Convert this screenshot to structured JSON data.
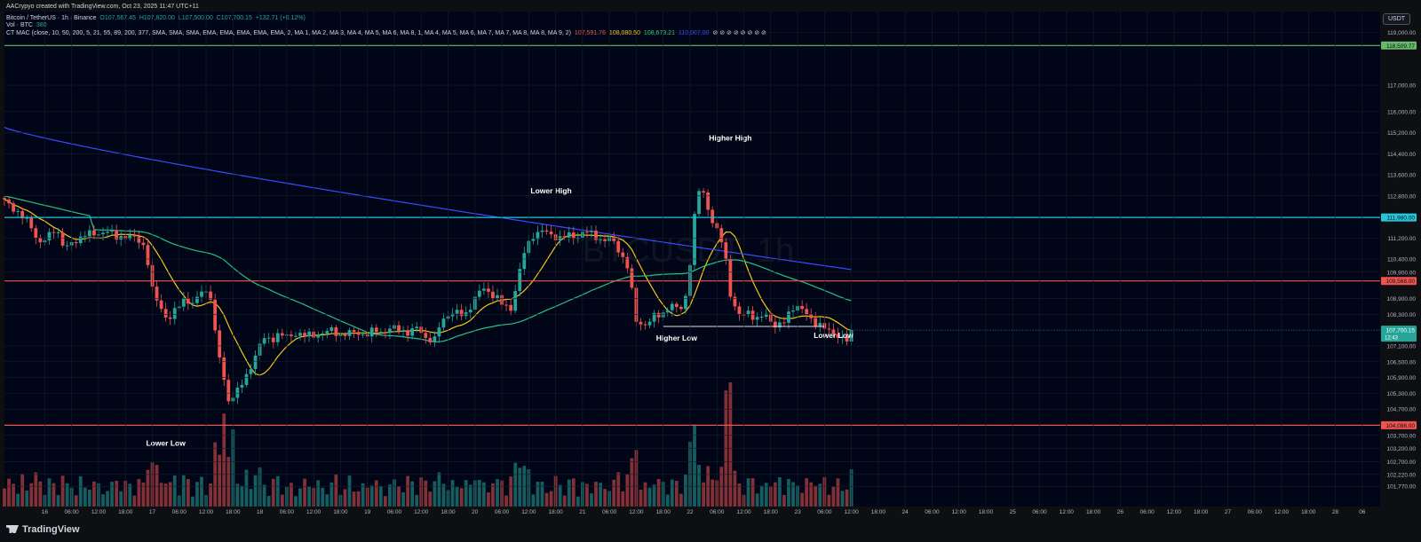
{
  "credit": "AACrypyo created with TradingView.com, Oct 23, 2025 11:47 UTC+11",
  "symbol_line": {
    "name": "Bitcoin / TetherUS · 1h · Binance",
    "o": "O107,567.45",
    "h": "H107,820.00",
    "l": "L107,500.00",
    "c": "C107,700.15",
    "chg": "+132.71 (+0.12%)"
  },
  "vol_line": {
    "label": "Vol · BTC",
    "value": "380"
  },
  "ma_line": {
    "label": "CT MAC (close, 10, 50, 200, 5, 21, 55, 89, 200, 377, SMA, SMA, SMA, EMA, EMA, EMA, EMA, EMA, 2, MA 1, MA 2, MA 3, MA 4, MA 5, MA 6, MA 8, 1, MA 4, MA 5, MA 6, MA 7, MA 7, MA 8, MA 8, MA 9, 2)",
    "v1": "107,591.76",
    "v2": "108,080.50",
    "v3": "108,673.21",
    "v4": "110,007.00"
  },
  "currency": "USDT",
  "watermark": {
    "symbol": "BTCUSDT, 1h",
    "sub": "Bitcoin / TetherUS"
  },
  "brand": "TradingView",
  "chart_data": {
    "type": "candlestick",
    "timeframe": "1h",
    "y_axis": {
      "min": 101000,
      "max": 119800,
      "ticks": [
        "119,000.00",
        "117,000.00",
        "116,000.00",
        "115,200.00",
        "114,400.00",
        "113,600.00",
        "112,800.00",
        "111,200.00",
        "110,400.00",
        "109,900.00",
        "108,900.00",
        "108,300.00",
        "107,100.00",
        "106,500.00",
        "105,900.00",
        "105,300.00",
        "104,700.00",
        "103,700.00",
        "103,200.00",
        "102,700.00",
        "102,220.00",
        "101,770.00"
      ]
    },
    "x_axis": {
      "ticks": [
        {
          "label": "16",
          "hour": 9
        },
        {
          "label": "06:00",
          "hour": 15
        },
        {
          "label": "12:00",
          "hour": 21
        },
        {
          "label": "18:00",
          "hour": 27
        },
        {
          "label": "17",
          "hour": 33
        },
        {
          "label": "06:00",
          "hour": 39
        },
        {
          "label": "12:00",
          "hour": 45
        },
        {
          "label": "18:00",
          "hour": 51
        },
        {
          "label": "18",
          "hour": 57
        },
        {
          "label": "06:00",
          "hour": 63
        },
        {
          "label": "12:00",
          "hour": 69
        },
        {
          "label": "18:00",
          "hour": 75
        },
        {
          "label": "19",
          "hour": 81
        },
        {
          "label": "06:00",
          "hour": 87
        },
        {
          "label": "12:00",
          "hour": 93
        },
        {
          "label": "18:00",
          "hour": 99
        },
        {
          "label": "20",
          "hour": 105
        },
        {
          "label": "06:00",
          "hour": 111
        },
        {
          "label": "12:00",
          "hour": 117
        },
        {
          "label": "18:00",
          "hour": 123
        },
        {
          "label": "21",
          "hour": 129
        },
        {
          "label": "06:00",
          "hour": 135
        },
        {
          "label": "12:00",
          "hour": 141
        },
        {
          "label": "18:00",
          "hour": 147
        },
        {
          "label": "22",
          "hour": 153
        },
        {
          "label": "06:00",
          "hour": 159
        },
        {
          "label": "12:00",
          "hour": 165
        },
        {
          "label": "18:00",
          "hour": 171
        },
        {
          "label": "23",
          "hour": 177
        },
        {
          "label": "06:00",
          "hour": 183
        },
        {
          "label": "12:00",
          "hour": 189
        },
        {
          "label": "18:00",
          "hour": 195
        },
        {
          "label": "24",
          "hour": 201
        },
        {
          "label": "06:00",
          "hour": 207
        },
        {
          "label": "12:00",
          "hour": 213
        },
        {
          "label": "18:00",
          "hour": 219
        },
        {
          "label": "25",
          "hour": 225
        },
        {
          "label": "06:00",
          "hour": 231
        },
        {
          "label": "12:00",
          "hour": 237
        },
        {
          "label": "18:00",
          "hour": 243
        },
        {
          "label": "26",
          "hour": 249
        },
        {
          "label": "06:00",
          "hour": 255
        },
        {
          "label": "12:00",
          "hour": 261
        },
        {
          "label": "18:00",
          "hour": 267
        },
        {
          "label": "27",
          "hour": 273
        },
        {
          "label": "06:00",
          "hour": 279
        },
        {
          "label": "12:00",
          "hour": 285
        },
        {
          "label": "18:00",
          "hour": 291
        },
        {
          "label": "28",
          "hour": 297
        },
        {
          "label": "06",
          "hour": 303
        }
      ],
      "hour_min": 0,
      "hour_max": 307
    },
    "last_hour": 189,
    "price_waypoints": [
      [
        0,
        112600
      ],
      [
        3,
        112200
      ],
      [
        6,
        111700
      ],
      [
        8,
        111000
      ],
      [
        10,
        111200
      ],
      [
        12,
        111600
      ],
      [
        14,
        110800
      ],
      [
        16,
        111000
      ],
      [
        19,
        111400
      ],
      [
        21,
        111300
      ],
      [
        24,
        111500
      ],
      [
        26,
        111200
      ],
      [
        29,
        111300
      ],
      [
        31,
        111100
      ],
      [
        33,
        110800
      ],
      [
        34,
        109400
      ],
      [
        36,
        108600
      ],
      [
        38,
        108100
      ],
      [
        40,
        108500
      ],
      [
        42,
        108900
      ],
      [
        44,
        108700
      ],
      [
        46,
        109200
      ],
      [
        48,
        109000
      ],
      [
        49,
        107600
      ],
      [
        51,
        105800
      ],
      [
        52,
        105000
      ],
      [
        54,
        105400
      ],
      [
        56,
        105800
      ],
      [
        58,
        106600
      ],
      [
        60,
        107400
      ],
      [
        62,
        107300
      ],
      [
        64,
        107600
      ],
      [
        66,
        107400
      ],
      [
        68,
        107600
      ],
      [
        70,
        107500
      ],
      [
        72,
        107500
      ],
      [
        74,
        107600
      ],
      [
        76,
        107700
      ],
      [
        78,
        107500
      ],
      [
        80,
        107600
      ],
      [
        82,
        107600
      ],
      [
        84,
        107500
      ],
      [
        86,
        107700
      ],
      [
        88,
        107600
      ],
      [
        90,
        107800
      ],
      [
        92,
        107700
      ],
      [
        94,
        107600
      ],
      [
        96,
        107800
      ],
      [
        98,
        107400
      ],
      [
        100,
        107300
      ],
      [
        101,
        107800
      ],
      [
        103,
        108300
      ],
      [
        105,
        108400
      ],
      [
        107,
        108200
      ],
      [
        109,
        108800
      ],
      [
        111,
        109300
      ],
      [
        113,
        109100
      ],
      [
        115,
        108900
      ],
      [
        116,
        108600
      ],
      [
        118,
        108500
      ],
      [
        119,
        109400
      ],
      [
        121,
        110700
      ],
      [
        123,
        111300
      ],
      [
        125,
        111500
      ],
      [
        127,
        111300
      ],
      [
        129,
        111200
      ],
      [
        131,
        111300
      ],
      [
        133,
        111200
      ],
      [
        135,
        111500
      ],
      [
        137,
        111300
      ],
      [
        139,
        111100
      ],
      [
        141,
        111200
      ],
      [
        143,
        110700
      ],
      [
        145,
        110100
      ],
      [
        146,
        109100
      ],
      [
        147,
        108000
      ],
      [
        149,
        107900
      ],
      [
        151,
        108200
      ],
      [
        153,
        108300
      ],
      [
        155,
        108700
      ],
      [
        157,
        108400
      ],
      [
        159,
        109200
      ],
      [
        160,
        111500
      ],
      [
        162,
        113400
      ],
      [
        163,
        112600
      ],
      [
        165,
        111700
      ],
      [
        167,
        111000
      ],
      [
        168,
        110200
      ],
      [
        169,
        108900
      ],
      [
        171,
        108200
      ],
      [
        173,
        108400
      ],
      [
        175,
        108100
      ],
      [
        177,
        108300
      ],
      [
        179,
        107900
      ],
      [
        181,
        107900
      ],
      [
        182,
        108200
      ],
      [
        184,
        108700
      ],
      [
        186,
        108400
      ],
      [
        188,
        108000
      ],
      [
        190,
        107900
      ],
      [
        192,
        107600
      ],
      [
        194,
        107500
      ],
      [
        196,
        107300
      ],
      [
        197,
        107700
      ]
    ],
    "horizontal_levels": [
      {
        "name": "level-top",
        "value": 118509.77,
        "label": "118,509.77",
        "color": "#66bb6a"
      },
      {
        "name": "level-resistance",
        "value": 111980.0,
        "label": "111,980.00",
        "color": "#26c6da"
      },
      {
        "name": "level-mid",
        "value": 109568.0,
        "label": "109,568.00",
        "color": "#ef5350"
      },
      {
        "name": "level-support",
        "value": 104088.0,
        "label": "104,088.00",
        "color": "#ef5350"
      }
    ],
    "current_price": {
      "value": 107700.15,
      "label": "107,700.15",
      "countdown": "12:43",
      "color": "#26a69a"
    },
    "moving_averages": [
      {
        "name": "ma-yellow",
        "color": "#f5c518",
        "period": 10
      },
      {
        "name": "ma-green",
        "color": "#26c281",
        "period": 50
      },
      {
        "name": "ma-blue",
        "color": "#3a4bff",
        "period": 200
      }
    ],
    "annotations": [
      {
        "text": "Lower High",
        "hour": 122,
        "price": 112900
      },
      {
        "text": "Higher High",
        "hour": 162,
        "price": 114900
      },
      {
        "text": "Higher Low",
        "hour": 150,
        "price": 107300
      },
      {
        "text": "Lower Low",
        "hour": 185,
        "price": 107400
      },
      {
        "text": "Lower Low",
        "hour": 36,
        "price": 103300
      }
    ],
    "higher_low_line": {
      "from_hour": 147,
      "to_hour": 183,
      "price": 107840
    },
    "colors": {
      "up": "#26a69a",
      "down": "#ef5350",
      "grid": "#1a1d26",
      "bg": "#000617",
      "text": "#b2b5be"
    }
  }
}
